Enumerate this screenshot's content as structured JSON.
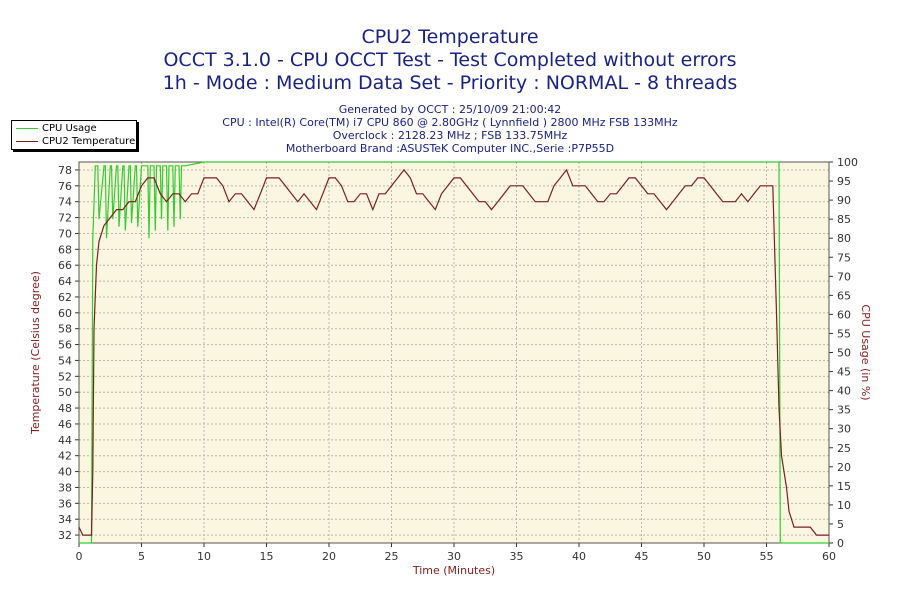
{
  "title": "CPU2 Temperature",
  "subtitle1": "OCCT 3.1.0 - CPU OCCT Test - Test Completed without errors",
  "subtitle2": "1h - Mode : Medium Data Set - Priority : NORMAL - 8 threads",
  "info": {
    "generated": "Generated by OCCT : 25/10/09 21:00:42",
    "cpu": "CPU : Intel(R) Core(TM) i7 CPU 860 @ 2.80GHz ( Lynnfield ) 2800 MHz FSB 133MHz",
    "overclock": "Overclock : 2128.23 MHz ; FSB 133.75MHz",
    "motherboard": "Motherboard Brand :ASUSTeK Computer INC.,Serie :P7P55D"
  },
  "colors": {
    "cpu_usage": "#33cc33",
    "temperature": "#7b1f1f",
    "plot_bg": "#fbf6e0",
    "grid": "#b8b8a8",
    "text": "#1a237e"
  },
  "chart_data": {
    "type": "line",
    "title": "CPU2 Temperature",
    "xlabel": "Time (Minutes)",
    "ylabel_left": "Temperature (Celsius degree)",
    "ylabel_right": "CPU Usage (in %)",
    "xlim": [
      0,
      60
    ],
    "x_ticks": [
      0,
      5,
      10,
      15,
      20,
      25,
      30,
      35,
      40,
      45,
      50,
      55,
      60
    ],
    "ylim_left": [
      31,
      79
    ],
    "y_ticks_left": [
      32,
      34,
      36,
      38,
      40,
      42,
      44,
      46,
      48,
      50,
      52,
      54,
      56,
      58,
      60,
      62,
      64,
      66,
      68,
      70,
      72,
      74,
      76,
      78
    ],
    "ylim_right": [
      0,
      100
    ],
    "y_ticks_right": [
      0,
      5,
      10,
      15,
      20,
      25,
      30,
      35,
      40,
      45,
      50,
      55,
      60,
      65,
      70,
      75,
      80,
      85,
      90,
      95,
      100
    ],
    "grid": true,
    "legend_position": "top-left",
    "series": [
      {
        "name": "CPU Usage",
        "axis": "right",
        "x": [
          0,
          1.0,
          1.1,
          1.3,
          1.5,
          1.6,
          2.0,
          2.1,
          2.2,
          2.5,
          2.6,
          2.7,
          3.0,
          3.1,
          3.2,
          3.5,
          3.6,
          3.7,
          4.0,
          4.1,
          4.2,
          4.5,
          4.6,
          4.7,
          5.0,
          5.5,
          5.6,
          5.7,
          6.0,
          6.1,
          6.2,
          6.5,
          6.6,
          6.7,
          7.0,
          7.1,
          7.2,
          7.5,
          7.6,
          7.7,
          8.0,
          8.1,
          8.2,
          8.5,
          10,
          15,
          20,
          25,
          30,
          35,
          40,
          45,
          50,
          55,
          55.8,
          56.0,
          56.1,
          60
        ],
        "values": [
          0,
          0,
          80,
          99,
          99,
          85,
          99,
          99,
          80,
          99,
          99,
          85,
          99,
          99,
          83,
          99,
          99,
          82,
          99,
          99,
          84,
          99,
          99,
          83,
          99,
          99,
          80,
          99,
          99,
          82,
          99,
          99,
          85,
          99,
          99,
          82,
          99,
          99,
          83,
          99,
          99,
          85,
          99,
          99,
          100,
          100,
          100,
          100,
          100,
          100,
          100,
          100,
          100,
          100,
          100,
          100,
          0,
          0
        ]
      },
      {
        "name": "CPU2 Temperature",
        "axis": "left",
        "x": [
          0,
          0.3,
          0.7,
          1.0,
          1.1,
          1.2,
          1.4,
          1.6,
          1.8,
          2.0,
          2.5,
          3.0,
          3.5,
          4.0,
          4.5,
          5.0,
          5.5,
          6.0,
          6.5,
          7.0,
          7.5,
          8.0,
          8.5,
          9.0,
          9.5,
          10.0,
          10.5,
          11.0,
          11.5,
          12.0,
          12.5,
          13.0,
          13.5,
          14.0,
          14.5,
          15.0,
          15.5,
          16.0,
          16.5,
          17.0,
          17.5,
          18.0,
          18.5,
          19.0,
          19.5,
          20.0,
          20.5,
          21.0,
          21.5,
          22.0,
          22.5,
          23.0,
          23.5,
          24.0,
          24.5,
          25.0,
          25.5,
          26.0,
          26.5,
          27.0,
          27.5,
          28.0,
          28.5,
          29.0,
          29.5,
          30.0,
          30.5,
          31.0,
          31.5,
          32.0,
          32.5,
          33.0,
          33.5,
          34.0,
          34.5,
          35.0,
          35.5,
          36.0,
          36.5,
          37.0,
          37.5,
          38.0,
          38.5,
          39.0,
          39.5,
          40.0,
          40.5,
          41.0,
          41.5,
          42.0,
          42.5,
          43.0,
          43.5,
          44.0,
          44.5,
          45.0,
          45.5,
          46.0,
          46.5,
          47.0,
          47.5,
          48.0,
          48.5,
          49.0,
          49.5,
          50.0,
          50.5,
          51.0,
          51.5,
          52.0,
          52.5,
          53.0,
          53.5,
          54.0,
          54.5,
          55.0,
          55.5,
          55.8,
          56.0,
          56.2,
          56.4,
          56.6,
          56.8,
          57.0,
          57.2,
          57.5,
          58.0,
          58.5,
          59.0,
          59.5,
          60.0
        ],
        "values": [
          33,
          32,
          32,
          32,
          40,
          58,
          66,
          69,
          70,
          71,
          72,
          73,
          73,
          74,
          74,
          76,
          77,
          77,
          75,
          74,
          75,
          75,
          74,
          75,
          75,
          77,
          77,
          77,
          76,
          74,
          75,
          75,
          74,
          73,
          75,
          77,
          77,
          77,
          76,
          75,
          74,
          75,
          74,
          73,
          75,
          77,
          77,
          76,
          74,
          74,
          75,
          75,
          73,
          75,
          75,
          76,
          77,
          78,
          77,
          75,
          75,
          74,
          73,
          75,
          76,
          77,
          77,
          76,
          75,
          74,
          74,
          73,
          74,
          75,
          76,
          76,
          76,
          75,
          74,
          74,
          74,
          76,
          77,
          78,
          76,
          76,
          76,
          75,
          74,
          74,
          75,
          75,
          76,
          77,
          77,
          76,
          75,
          75,
          74,
          73,
          74,
          75,
          76,
          76,
          77,
          77,
          76,
          75,
          74,
          74,
          74,
          75,
          74,
          75,
          76,
          76,
          76,
          60,
          48,
          42,
          40,
          38,
          35,
          34,
          33,
          33,
          33,
          33,
          32,
          32,
          32
        ]
      }
    ]
  }
}
